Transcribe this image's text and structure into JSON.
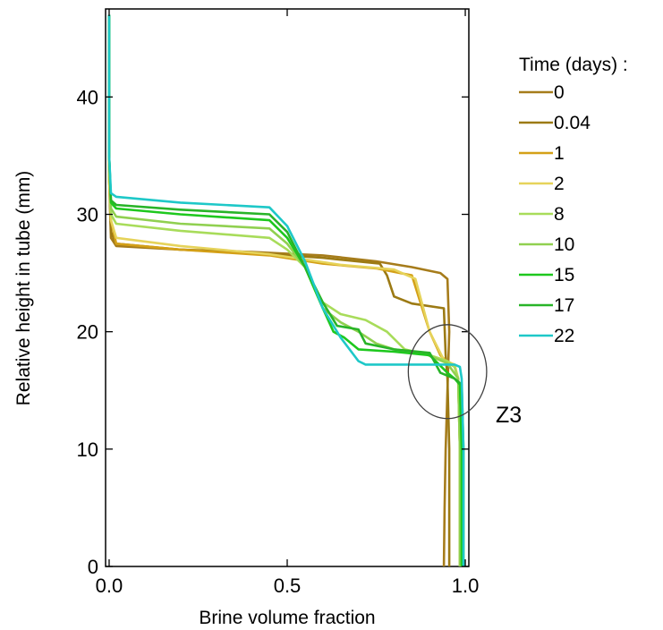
{
  "chart_data": {
    "type": "line",
    "title": "",
    "xlabel": "Brine volume fraction",
    "ylabel": "Relative height in tube (mm)",
    "xlim": [
      -0.01,
      1.01
    ],
    "ylim": [
      0,
      47.5
    ],
    "xticks": [
      0.0,
      0.5,
      1.0
    ],
    "xtick_labels": [
      "0.0",
      "0.5",
      "1.0"
    ],
    "yticks": [
      0,
      10,
      20,
      30,
      40
    ],
    "ytick_labels": [
      "0",
      "10",
      "20",
      "30",
      "40"
    ],
    "grid": false,
    "legend_title": "Time (days) :",
    "legend_position": "right",
    "annotation": {
      "text": "Z3",
      "ellipse_center": [
        0.95,
        16.6
      ],
      "ellipse_radii": [
        0.11,
        4.0
      ]
    },
    "series": [
      {
        "name": "0",
        "color": "#a67c1b",
        "points": [
          [
            0.0,
            47
          ],
          [
            0.0,
            33
          ],
          [
            0.005,
            28
          ],
          [
            0.02,
            27.3
          ],
          [
            0.2,
            27.0
          ],
          [
            0.4,
            26.8
          ],
          [
            0.6,
            26.5
          ],
          [
            0.75,
            26.0
          ],
          [
            0.85,
            25.5
          ],
          [
            0.93,
            25.0
          ],
          [
            0.95,
            24.5
          ],
          [
            0.955,
            20
          ],
          [
            0.95,
            15
          ],
          [
            0.945,
            10
          ],
          [
            0.942,
            5
          ],
          [
            0.94,
            0
          ]
        ]
      },
      {
        "name": "0.04",
        "color": "#9c7a14",
        "points": [
          [
            0.0,
            47
          ],
          [
            0.0,
            33
          ],
          [
            0.005,
            28.5
          ],
          [
            0.02,
            27.5
          ],
          [
            0.2,
            27.0
          ],
          [
            0.4,
            26.7
          ],
          [
            0.6,
            26.3
          ],
          [
            0.76,
            25.8
          ],
          [
            0.78,
            24.8
          ],
          [
            0.8,
            23.0
          ],
          [
            0.85,
            22.4
          ],
          [
            0.94,
            22.0
          ],
          [
            0.945,
            18
          ],
          [
            0.95,
            16
          ],
          [
            0.955,
            10
          ],
          [
            0.955,
            0
          ]
        ]
      },
      {
        "name": "1",
        "color": "#d4a017",
        "points": [
          [
            0.0,
            47
          ],
          [
            0.0,
            33
          ],
          [
            0.005,
            29.5
          ],
          [
            0.02,
            27.5
          ],
          [
            0.2,
            27.0
          ],
          [
            0.45,
            26.5
          ],
          [
            0.6,
            25.8
          ],
          [
            0.75,
            25.4
          ],
          [
            0.85,
            24.8
          ],
          [
            0.9,
            20
          ],
          [
            0.93,
            18
          ],
          [
            0.95,
            17.4
          ],
          [
            0.97,
            17.0
          ],
          [
            0.98,
            16
          ],
          [
            0.985,
            10
          ],
          [
            0.985,
            0
          ]
        ]
      },
      {
        "name": "2",
        "color": "#e6d35a",
        "points": [
          [
            0.0,
            47
          ],
          [
            0.0,
            33
          ],
          [
            0.005,
            29.5
          ],
          [
            0.02,
            28.0
          ],
          [
            0.2,
            27.3
          ],
          [
            0.45,
            26.6
          ],
          [
            0.52,
            26.3
          ],
          [
            0.65,
            25.7
          ],
          [
            0.8,
            25.3
          ],
          [
            0.86,
            24.5
          ],
          [
            0.9,
            20
          ],
          [
            0.94,
            17.6
          ],
          [
            0.97,
            17.2
          ],
          [
            0.98,
            16
          ],
          [
            0.985,
            10
          ],
          [
            0.985,
            0
          ]
        ]
      },
      {
        "name": "8",
        "color": "#a8dc5a",
        "points": [
          [
            0.0,
            47
          ],
          [
            0.0,
            35
          ],
          [
            0.005,
            30
          ],
          [
            0.02,
            29.2
          ],
          [
            0.2,
            28.6
          ],
          [
            0.45,
            28.0
          ],
          [
            0.5,
            27.0
          ],
          [
            0.55,
            25.5
          ],
          [
            0.6,
            22.5
          ],
          [
            0.65,
            21.5
          ],
          [
            0.72,
            21.0
          ],
          [
            0.78,
            20.0
          ],
          [
            0.83,
            18.5
          ],
          [
            0.9,
            18.0
          ],
          [
            0.95,
            17.5
          ],
          [
            0.97,
            17.0
          ],
          [
            0.98,
            16
          ],
          [
            0.985,
            10
          ],
          [
            0.985,
            0
          ]
        ]
      },
      {
        "name": "10",
        "color": "#90d050",
        "points": [
          [
            0.0,
            47
          ],
          [
            0.0,
            35
          ],
          [
            0.005,
            30.5
          ],
          [
            0.02,
            29.8
          ],
          [
            0.2,
            29.2
          ],
          [
            0.45,
            28.8
          ],
          [
            0.5,
            27.5
          ],
          [
            0.55,
            25.5
          ],
          [
            0.6,
            22.0
          ],
          [
            0.65,
            20.8
          ],
          [
            0.7,
            20.0
          ],
          [
            0.75,
            19.0
          ],
          [
            0.8,
            18.5
          ],
          [
            0.88,
            18.2
          ],
          [
            0.95,
            17.3
          ],
          [
            0.98,
            16
          ],
          [
            0.985,
            10
          ],
          [
            0.985,
            0
          ]
        ]
      },
      {
        "name": "15",
        "color": "#1ec81e",
        "points": [
          [
            0.0,
            47
          ],
          [
            0.0,
            35
          ],
          [
            0.005,
            31.0
          ],
          [
            0.02,
            30.5
          ],
          [
            0.2,
            30.0
          ],
          [
            0.45,
            29.5
          ],
          [
            0.5,
            28.0
          ],
          [
            0.55,
            25.5
          ],
          [
            0.6,
            22.0
          ],
          [
            0.63,
            20.0
          ],
          [
            0.66,
            19.5
          ],
          [
            0.7,
            18.5
          ],
          [
            0.8,
            18.3
          ],
          [
            0.9,
            18.0
          ],
          [
            0.95,
            16.5
          ],
          [
            0.97,
            16.0
          ],
          [
            0.985,
            15.5
          ],
          [
            0.99,
            10
          ],
          [
            0.99,
            0
          ]
        ]
      },
      {
        "name": "17",
        "color": "#28b428",
        "points": [
          [
            0.0,
            47
          ],
          [
            0.0,
            35
          ],
          [
            0.005,
            31.2
          ],
          [
            0.02,
            30.8
          ],
          [
            0.2,
            30.4
          ],
          [
            0.45,
            30.0
          ],
          [
            0.5,
            28.5
          ],
          [
            0.55,
            25.5
          ],
          [
            0.6,
            22.5
          ],
          [
            0.64,
            20.5
          ],
          [
            0.7,
            20.2
          ],
          [
            0.72,
            19.0
          ],
          [
            0.8,
            18.5
          ],
          [
            0.9,
            18.2
          ],
          [
            0.93,
            16.5
          ],
          [
            0.97,
            16.0
          ],
          [
            0.99,
            15.5
          ],
          [
            0.995,
            10
          ],
          [
            0.995,
            0
          ]
        ]
      },
      {
        "name": "22",
        "color": "#1ec8c8",
        "points": [
          [
            0.0,
            47
          ],
          [
            0.0,
            35
          ],
          [
            0.005,
            31.8
          ],
          [
            0.02,
            31.5
          ],
          [
            0.2,
            31.0
          ],
          [
            0.45,
            30.6
          ],
          [
            0.5,
            29.0
          ],
          [
            0.55,
            26.0
          ],
          [
            0.6,
            22.0
          ],
          [
            0.65,
            19.5
          ],
          [
            0.7,
            17.5
          ],
          [
            0.72,
            17.2
          ],
          [
            0.9,
            17.2
          ],
          [
            0.97,
            17.2
          ],
          [
            0.985,
            17.0
          ],
          [
            0.99,
            16
          ],
          [
            0.995,
            10
          ],
          [
            0.995,
            0
          ]
        ]
      }
    ]
  }
}
